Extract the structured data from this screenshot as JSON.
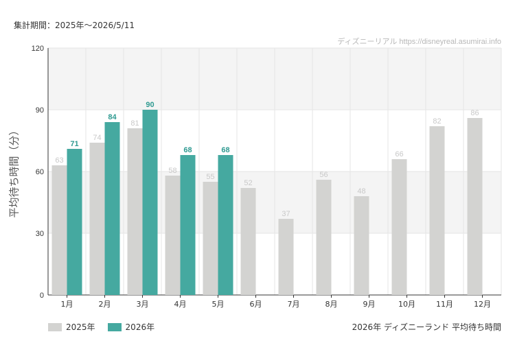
{
  "header": {
    "period": "集計期間：2025年～2026/5/11",
    "source": "ディズニーリアル https://disneyreal.asumirai.info"
  },
  "footer": {
    "caption": "2026年 ディズニーランド 平均待ち時間"
  },
  "colors": {
    "series_2025": "#d3d3d1",
    "series_2026": "#45a9a0",
    "label_2025": "#c8c8c8",
    "label_2026": "#2f9a91",
    "band": "#f4f4f4",
    "grid": "#e5e5e5",
    "axis": "#333333"
  },
  "chart_data": {
    "type": "bar",
    "ylabel": "平均待ち時間（分）",
    "ylim": [
      0,
      120
    ],
    "yticks": [
      0,
      30,
      60,
      90,
      120
    ],
    "categories": [
      "1月",
      "2月",
      "3月",
      "4月",
      "5月",
      "6月",
      "7月",
      "8月",
      "9月",
      "10月",
      "11月",
      "12月"
    ],
    "series": [
      {
        "name": "2025年",
        "values": [
          63,
          74,
          81,
          58,
          55,
          52,
          37,
          56,
          48,
          66,
          82,
          86
        ]
      },
      {
        "name": "2026年",
        "values": [
          71,
          84,
          90,
          68,
          68,
          null,
          null,
          null,
          null,
          null,
          null,
          null
        ]
      }
    ],
    "legend_position": "bottom-left",
    "grid": true
  }
}
